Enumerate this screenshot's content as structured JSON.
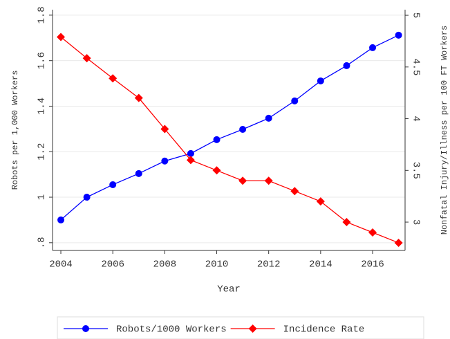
{
  "chart_data": {
    "type": "line",
    "xlabel": "Year",
    "ylabel": "Robots per 1,000 Workers",
    "y2label": "Nonfatal Injury/Illness per 100 FT Workers",
    "x": [
      2004,
      2005,
      2006,
      2007,
      2008,
      2009,
      2010,
      2011,
      2012,
      2013,
      2014,
      2015,
      2016,
      2017
    ],
    "xlim": [
      2003.68,
      2017.25
    ],
    "xticks": [
      2004,
      2006,
      2008,
      2010,
      2012,
      2014,
      2016
    ],
    "ylim": [
      0.766,
      1.824
    ],
    "yticks": [
      {
        "value": 0.8,
        "label": ".8"
      },
      1,
      1.2,
      1.4,
      1.6,
      1.8
    ],
    "y2lim": [
      2.726,
      5.054
    ],
    "y2ticks": [
      3,
      3.5,
      4,
      4.5,
      5
    ],
    "grid": true,
    "legend": "bottom",
    "series": [
      {
        "name": "Robots/1000 Workers",
        "color": "#0000ff",
        "marker": "circle",
        "values": [
          0.9,
          1.0,
          1.055,
          1.104,
          1.159,
          1.192,
          1.253,
          1.298,
          1.347,
          1.423,
          1.511,
          1.578,
          1.657,
          1.712
        ]
      },
      {
        "name": "Incidence Rate",
        "color": "#ff0000",
        "marker": "diamond",
        "axis": "y2",
        "values": [
          4.79,
          4.585,
          4.39,
          4.2,
          3.9,
          3.6,
          3.5,
          3.4,
          3.4,
          3.3,
          3.2,
          3.0,
          2.9,
          2.8
        ]
      }
    ]
  }
}
